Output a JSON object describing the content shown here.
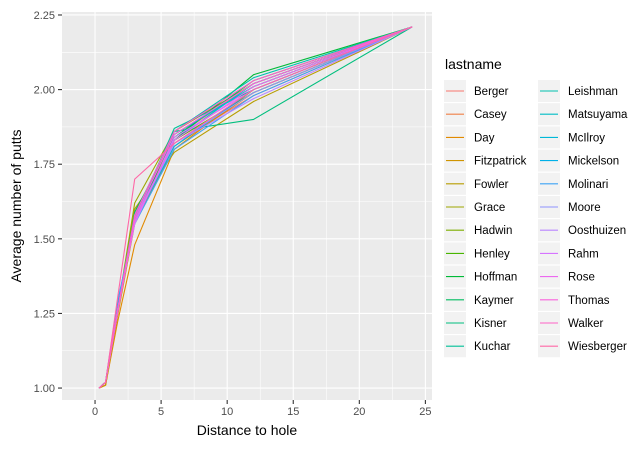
{
  "chart_data": {
    "type": "line",
    "xlabel": "Distance to hole",
    "ylabel": "Average number of putts",
    "xlim": [
      -2.5,
      25.5
    ],
    "ylim": [
      0.96,
      2.26
    ],
    "x_ticks": [
      0,
      5,
      10,
      15,
      20,
      25
    ],
    "y_ticks": [
      1.0,
      1.25,
      1.5,
      1.75,
      2.0,
      2.25
    ],
    "y_tick_labels": [
      "1.00",
      "1.25",
      "1.50",
      "1.75",
      "2.00",
      "2.25"
    ],
    "x": [
      0.3,
      0.8,
      1.7,
      3.0,
      6.0,
      12.0,
      24.0
    ],
    "grid": true,
    "legend": {
      "title": "lastname",
      "placement": "right",
      "columns": 2
    },
    "series": [
      {
        "name": "Berger",
        "color": "#F8766D",
        "values": [
          1.0,
          1.01,
          1.25,
          1.56,
          1.82,
          1.98,
          2.21
        ]
      },
      {
        "name": "Casey",
        "color": "#EF7F46",
        "values": [
          1.0,
          1.02,
          1.26,
          1.58,
          1.84,
          2.02,
          2.21
        ]
      },
      {
        "name": "Day",
        "color": "#E18A00",
        "values": [
          1.0,
          1.01,
          1.22,
          1.48,
          1.8,
          2.0,
          2.21
        ]
      },
      {
        "name": "Fitzpatrick",
        "color": "#CF9400",
        "values": [
          1.0,
          1.01,
          1.24,
          1.55,
          1.81,
          1.99,
          2.21
        ]
      },
      {
        "name": "Fowler",
        "color": "#B89D00",
        "values": [
          1.0,
          1.02,
          1.26,
          1.6,
          1.79,
          1.96,
          2.21
        ]
      },
      {
        "name": "Grace",
        "color": "#9DA700",
        "values": [
          1.0,
          1.02,
          1.26,
          1.62,
          1.86,
          2.02,
          2.21
        ]
      },
      {
        "name": "Hadwin",
        "color": "#7CAE00",
        "values": [
          1.0,
          1.02,
          1.25,
          1.56,
          1.85,
          2.01,
          2.21
        ]
      },
      {
        "name": "Henley",
        "color": "#49B500",
        "values": [
          1.0,
          1.02,
          1.26,
          1.57,
          1.83,
          1.99,
          2.21
        ]
      },
      {
        "name": "Hoffman",
        "color": "#00BA38",
        "values": [
          1.0,
          1.02,
          1.26,
          1.57,
          1.83,
          2.05,
          2.21
        ]
      },
      {
        "name": "Kaymer",
        "color": "#00BD5F",
        "values": [
          1.0,
          1.02,
          1.25,
          1.59,
          1.84,
          2.03,
          2.21
        ]
      },
      {
        "name": "Kisner",
        "color": "#00BF7D",
        "values": [
          1.0,
          1.02,
          1.26,
          1.58,
          1.86,
          1.9,
          2.21
        ]
      },
      {
        "name": "Kuchar",
        "color": "#00C097",
        "values": [
          1.0,
          1.02,
          1.26,
          1.57,
          1.87,
          2.0,
          2.21
        ]
      },
      {
        "name": "Leishman",
        "color": "#00C0AF",
        "values": [
          1.0,
          1.02,
          1.27,
          1.58,
          1.86,
          2.04,
          2.21
        ]
      },
      {
        "name": "Matsuyama",
        "color": "#00BDC4",
        "values": [
          1.0,
          1.02,
          1.28,
          1.56,
          1.83,
          2.02,
          2.21
        ]
      },
      {
        "name": "McIlroy",
        "color": "#00B8D8",
        "values": [
          1.0,
          1.02,
          1.27,
          1.57,
          1.85,
          2.01,
          2.21
        ]
      },
      {
        "name": "Mickelson",
        "color": "#00B0E8",
        "values": [
          1.0,
          1.02,
          1.27,
          1.56,
          1.81,
          2.0,
          2.21
        ]
      },
      {
        "name": "Molinari",
        "color": "#3DA3F5",
        "values": [
          1.0,
          1.02,
          1.29,
          1.55,
          1.8,
          1.98,
          2.21
        ]
      },
      {
        "name": "Moore",
        "color": "#8F91FF",
        "values": [
          1.0,
          1.02,
          1.26,
          1.57,
          1.82,
          1.99,
          2.21
        ]
      },
      {
        "name": "Oosthuizen",
        "color": "#B984FF",
        "values": [
          1.0,
          1.02,
          1.25,
          1.56,
          1.82,
          1.97,
          2.21
        ]
      },
      {
        "name": "Rahm",
        "color": "#D674FF",
        "values": [
          1.0,
          1.02,
          1.26,
          1.55,
          1.84,
          2.0,
          2.21
        ]
      },
      {
        "name": "Rose",
        "color": "#EC69EF",
        "values": [
          1.0,
          1.02,
          1.25,
          1.56,
          1.83,
          2.01,
          2.21
        ]
      },
      {
        "name": "Thomas",
        "color": "#F962DD",
        "values": [
          1.0,
          1.02,
          1.26,
          1.57,
          1.85,
          2.02,
          2.21
        ]
      },
      {
        "name": "Walker",
        "color": "#FF61C6",
        "values": [
          1.0,
          1.02,
          1.26,
          1.58,
          1.86,
          2.03,
          2.21
        ]
      },
      {
        "name": "Wiesberger",
        "color": "#FF67A6",
        "values": [
          1.0,
          1.02,
          1.3,
          1.7,
          1.82,
          2.0,
          2.21
        ]
      }
    ]
  }
}
